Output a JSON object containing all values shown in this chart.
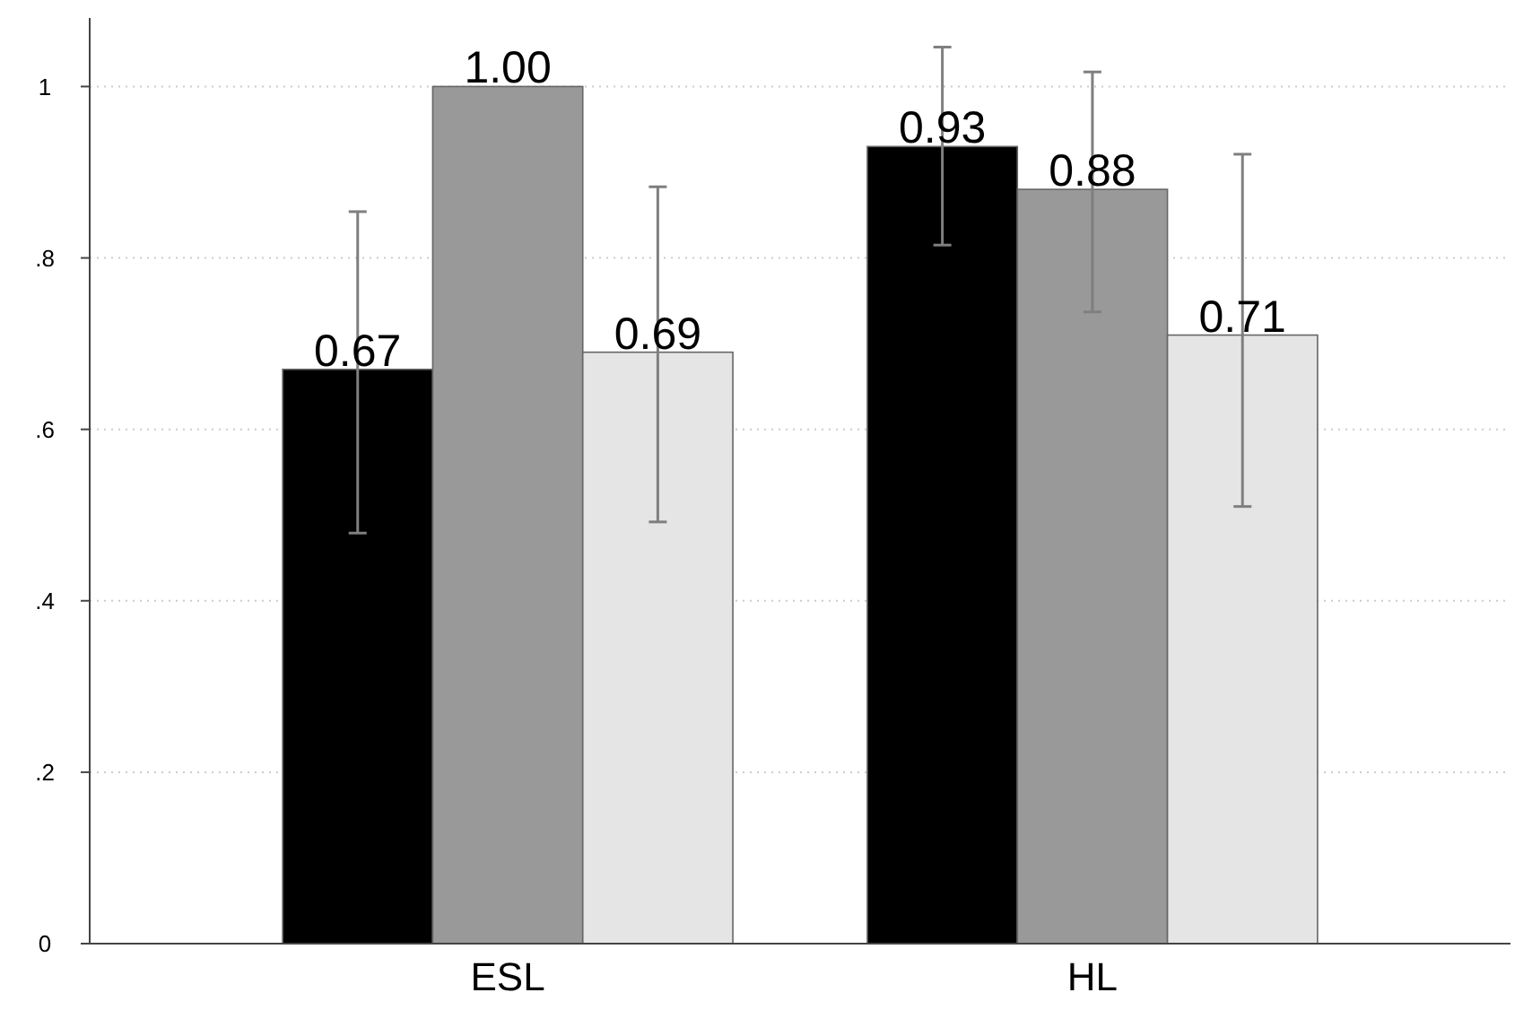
{
  "chart_data": {
    "type": "bar",
    "categories": [
      "ESL",
      "HL"
    ],
    "series": [
      {
        "color": "#000000",
        "values": [
          0.67,
          0.93
        ],
        "value_labels": [
          "0.67",
          "0.93"
        ],
        "errors": [
          [
            0.479,
            0.854
          ],
          [
            0.815,
            1.046
          ]
        ]
      },
      {
        "color": "#999999",
        "values": [
          1.0,
          0.88
        ],
        "value_labels": [
          "1.00",
          "0.88"
        ],
        "errors": [
          null,
          [
            0.737,
            1.017
          ]
        ]
      },
      {
        "color": "#e5e5e5",
        "values": [
          0.69,
          0.71
        ],
        "value_labels": [
          "0.69",
          "0.71"
        ],
        "errors": [
          [
            0.492,
            0.883
          ],
          [
            0.51,
            0.921
          ]
        ]
      }
    ],
    "ylim": [
      0,
      1.08
    ],
    "yticks": [
      0,
      {
        "value": 0.2,
        "label": ".2"
      },
      {
        "value": 0.4,
        "label": ".4"
      },
      {
        "value": 0.6,
        "label": ".6"
      },
      {
        "value": 0.8,
        "label": ".8"
      },
      1
    ],
    "grid": "y"
  }
}
